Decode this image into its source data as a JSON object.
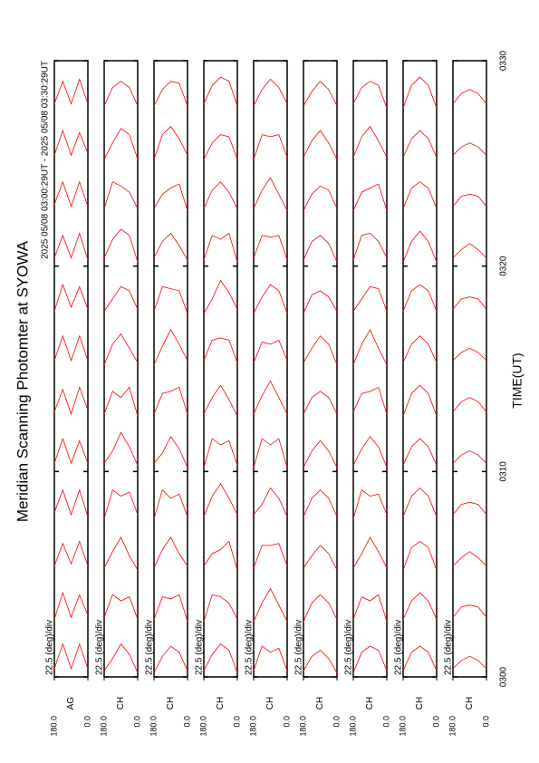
{
  "chart_data": {
    "type": "line",
    "title": "Meridian Scanning Photomter at SYOWA",
    "subtitle": "2025 05/08 03:00:29UT - 2025 05/08 03:30:29UT",
    "xlabel": "TIME(UT)",
    "scale_label": "22.5 (deg)/div",
    "color": "#ff0000",
    "xlim": [
      0,
      30
    ],
    "xticks": [
      {
        "value": 0,
        "label": "0300"
      },
      {
        "value": 10,
        "label": "0310"
      },
      {
        "value": 20,
        "label": "0320"
      },
      {
        "value": 30,
        "label": "0330"
      }
    ],
    "ylim": [
      0,
      180
    ],
    "yticks": [
      {
        "value": 0,
        "label": "0.0"
      },
      {
        "value": 180,
        "label": "180.0"
      }
    ],
    "angles": [
      0,
      45,
      90,
      135,
      180
    ],
    "times": [
      0,
      2.5,
      5,
      7.5,
      10,
      12.5,
      15,
      17.5,
      20,
      22.5,
      25,
      27.5
    ],
    "panels": [
      {
        "name": "AG",
        "scans": [
          [
            0.4,
            1.6,
            0.4,
            1.6,
            0.4
          ],
          [
            0.5,
            1.5,
            0.4,
            1.6,
            0.3
          ],
          [
            0.4,
            1.6,
            0.5,
            1.5,
            0.4
          ],
          [
            0.3,
            1.6,
            0.4,
            1.6,
            0.5
          ],
          [
            0.4,
            1.5,
            0.4,
            1.6,
            0.4
          ],
          [
            0.5,
            1.6,
            0.3,
            1.5,
            0.4
          ],
          [
            0.4,
            1.6,
            0.4,
            1.6,
            0.4
          ],
          [
            0.4,
            1.5,
            0.5,
            1.6,
            0.3
          ],
          [
            0.3,
            1.6,
            0.4,
            1.5,
            0.4
          ],
          [
            0.4,
            1.6,
            0.4,
            1.6,
            0.5
          ],
          [
            0.5,
            1.5,
            0.4,
            1.6,
            0.4
          ],
          [
            0.4,
            1.6,
            0.4,
            1.5,
            0.4
          ]
        ]
      },
      {
        "name": "CH",
        "scans": [
          [
            0.2,
            1.1,
            1.6,
            0.9,
            0.3
          ],
          [
            0.3,
            1.4,
            1.2,
            1.5,
            0.4
          ],
          [
            0.2,
            0.9,
            1.8,
            1.1,
            0.3
          ],
          [
            0.4,
            1.5,
            1.3,
            1.6,
            0.2
          ],
          [
            0.3,
            1.2,
            1.9,
            1.0,
            0.4
          ],
          [
            0.2,
            1.6,
            1.1,
            1.4,
            0.3
          ],
          [
            0.3,
            1.0,
            1.7,
            1.2,
            0.2
          ],
          [
            0.4,
            1.3,
            1.5,
            0.9,
            0.3
          ],
          [
            0.2,
            1.5,
            1.8,
            1.3,
            0.4
          ],
          [
            0.3,
            1.1,
            1.4,
            1.6,
            0.3
          ],
          [
            0.2,
            1.4,
            1.7,
            1.0,
            0.2
          ],
          [
            0.3,
            1.2,
            1.5,
            1.2,
            0.3
          ]
        ]
      },
      {
        "name": "CH",
        "scans": [
          [
            0.3,
            1.2,
            1.5,
            1.0,
            0.2
          ],
          [
            0.2,
            1.5,
            1.3,
            1.4,
            0.3
          ],
          [
            0.4,
            1.0,
            1.8,
            1.2,
            0.3
          ],
          [
            0.3,
            1.4,
            1.2,
            1.6,
            0.2
          ],
          [
            0.2,
            1.1,
            1.7,
            0.9,
            0.4
          ],
          [
            0.3,
            1.6,
            1.4,
            1.3,
            0.3
          ],
          [
            0.4,
            1.2,
            1.9,
            1.1,
            0.2
          ],
          [
            0.2,
            1.3,
            1.4,
            1.5,
            0.3
          ],
          [
            0.3,
            1.0,
            1.6,
            1.2,
            0.4
          ],
          [
            0.2,
            1.5,
            1.3,
            1.0,
            0.3
          ],
          [
            0.4,
            1.2,
            1.8,
            1.4,
            0.2
          ],
          [
            0.3,
            1.4,
            1.5,
            1.1,
            0.3
          ]
        ]
      },
      {
        "name": "CH",
        "scans": [
          [
            0.2,
            1.3,
            1.6,
            1.1,
            0.3
          ],
          [
            0.3,
            1.1,
            1.4,
            1.5,
            0.2
          ],
          [
            0.2,
            1.6,
            1.2,
            1.0,
            0.4
          ],
          [
            0.4,
            1.2,
            1.9,
            1.3,
            0.3
          ],
          [
            0.3,
            1.5,
            1.3,
            1.6,
            0.2
          ],
          [
            0.2,
            1.0,
            1.7,
            1.1,
            0.3
          ],
          [
            0.3,
            1.4,
            1.5,
            1.4,
            0.4
          ],
          [
            0.4,
            1.2,
            1.8,
            0.9,
            0.2
          ],
          [
            0.2,
            1.6,
            1.3,
            1.5,
            0.3
          ],
          [
            0.3,
            1.1,
            1.6,
            1.2,
            0.3
          ],
          [
            0.2,
            1.3,
            1.4,
            1.0,
            0.2
          ],
          [
            0.3,
            1.5,
            1.7,
            1.3,
            0.4
          ]
        ]
      },
      {
        "name": "CH",
        "scans": [
          [
            0.3,
            1.4,
            1.2,
            1.5,
            0.3
          ],
          [
            0.2,
            1.0,
            1.8,
            1.1,
            0.2
          ],
          [
            0.4,
            1.5,
            1.4,
            1.4,
            0.3
          ],
          [
            0.3,
            1.2,
            1.7,
            0.9,
            0.4
          ],
          [
            0.2,
            1.6,
            1.3,
            1.6,
            0.2
          ],
          [
            0.3,
            1.1,
            1.9,
            1.2,
            0.3
          ],
          [
            0.4,
            1.4,
            1.2,
            1.3,
            0.3
          ],
          [
            0.2,
            1.3,
            1.6,
            1.0,
            0.2
          ],
          [
            0.3,
            1.5,
            1.4,
            1.5,
            0.4
          ],
          [
            0.2,
            1.0,
            1.8,
            1.2,
            0.3
          ],
          [
            0.3,
            1.4,
            1.3,
            1.4,
            0.2
          ],
          [
            0.4,
            1.2,
            1.6,
            1.1,
            0.3
          ]
        ]
      },
      {
        "name": "CH",
        "scans": [
          [
            0.2,
            0.9,
            1.3,
            1.0,
            0.3
          ],
          [
            0.3,
            1.1,
            1.5,
            1.1,
            0.2
          ],
          [
            0.2,
            1.0,
            1.4,
            0.9,
            0.3
          ],
          [
            0.3,
            1.2,
            1.6,
            1.2,
            0.3
          ],
          [
            0.2,
            1.0,
            1.5,
            1.0,
            0.2
          ],
          [
            0.3,
            1.1,
            1.4,
            1.1,
            0.3
          ],
          [
            0.2,
            1.2,
            1.6,
            1.0,
            0.3
          ],
          [
            0.3,
            1.0,
            1.3,
            1.1,
            0.2
          ],
          [
            0.2,
            1.1,
            1.5,
            1.2,
            0.3
          ],
          [
            0.3,
            1.2,
            1.4,
            1.0,
            0.2
          ],
          [
            0.2,
            1.0,
            1.6,
            1.1,
            0.3
          ],
          [
            0.3,
            1.1,
            1.5,
            1.0,
            0.3
          ]
        ]
      },
      {
        "name": "CH",
        "scans": [
          [
            0.3,
            1.3,
            1.5,
            1.2,
            0.2
          ],
          [
            0.2,
            1.5,
            1.2,
            1.4,
            0.3
          ],
          [
            0.3,
            1.1,
            1.8,
            1.0,
            0.3
          ],
          [
            0.4,
            1.4,
            1.3,
            1.6,
            0.2
          ],
          [
            0.2,
            1.2,
            1.7,
            1.1,
            0.3
          ],
          [
            0.3,
            1.6,
            1.4,
            1.3,
            0.4
          ],
          [
            0.2,
            1.0,
            1.9,
            1.2,
            0.2
          ],
          [
            0.3,
            1.4,
            1.5,
            0.9,
            0.3
          ],
          [
            0.4,
            1.2,
            1.6,
            1.5,
            0.3
          ],
          [
            0.2,
            1.5,
            1.3,
            1.1,
            0.2
          ],
          [
            0.3,
            1.1,
            1.8,
            1.3,
            0.3
          ],
          [
            0.2,
            1.3,
            1.5,
            1.2,
            0.4
          ]
        ]
      },
      {
        "name": "CH",
        "scans": [
          [
            0.3,
            1.2,
            1.5,
            1.2,
            0.3
          ],
          [
            0.3,
            1.2,
            1.6,
            1.2,
            0.3
          ],
          [
            0.2,
            1.3,
            1.6,
            1.3,
            0.2
          ],
          [
            0.3,
            1.3,
            1.7,
            1.3,
            0.3
          ],
          [
            0.3,
            1.2,
            1.6,
            1.2,
            0.3
          ],
          [
            0.2,
            1.3,
            1.7,
            1.3,
            0.2
          ],
          [
            0.3,
            1.2,
            1.6,
            1.2,
            0.3
          ],
          [
            0.3,
            1.3,
            1.6,
            1.3,
            0.3
          ],
          [
            0.2,
            1.2,
            1.7,
            1.2,
            0.2
          ],
          [
            0.3,
            1.3,
            1.6,
            1.3,
            0.3
          ],
          [
            0.3,
            1.2,
            1.6,
            1.2,
            0.3
          ],
          [
            0.2,
            1.3,
            1.7,
            1.3,
            0.2
          ]
        ]
      },
      {
        "name": "CH",
        "scans": [
          [
            0.4,
            0.8,
            1.0,
            0.8,
            0.4
          ],
          [
            0.4,
            0.9,
            1.0,
            0.9,
            0.4
          ],
          [
            0.4,
            0.8,
            1.1,
            0.8,
            0.4
          ],
          [
            0.4,
            0.9,
            1.0,
            0.9,
            0.4
          ],
          [
            0.4,
            0.8,
            1.0,
            0.8,
            0.4
          ],
          [
            0.4,
            0.9,
            1.1,
            0.9,
            0.4
          ],
          [
            0.4,
            0.8,
            1.0,
            0.8,
            0.4
          ],
          [
            0.4,
            0.9,
            1.0,
            0.9,
            0.4
          ],
          [
            0.4,
            0.8,
            1.1,
            0.8,
            0.4
          ],
          [
            0.4,
            0.9,
            1.0,
            0.9,
            0.4
          ],
          [
            0.4,
            0.8,
            1.0,
            0.8,
            0.4
          ],
          [
            0.4,
            0.9,
            1.1,
            0.9,
            0.4
          ]
        ]
      }
    ]
  }
}
